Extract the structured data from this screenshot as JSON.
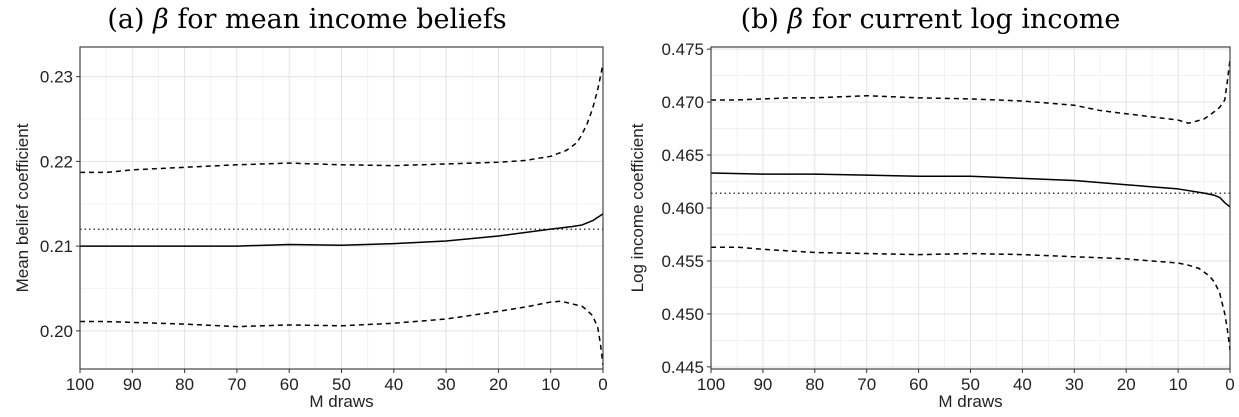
{
  "chart_data": [
    {
      "type": "line",
      "title_prefix": "(a)",
      "title_symbol": "β",
      "title_text": "for mean income beliefs",
      "xlabel": "M draws",
      "ylabel": "Mean belief coefficient",
      "xlim": [
        0,
        100
      ],
      "x_reversed": true,
      "ylim": [
        0.1955,
        0.2335
      ],
      "x_ticks": [
        100,
        90,
        80,
        70,
        60,
        50,
        40,
        30,
        20,
        10,
        0
      ],
      "y_ticks": [
        0.2,
        0.21,
        0.22,
        0.23
      ],
      "y_tick_labels": [
        "0.20",
        "0.21",
        "0.22",
        "0.23"
      ],
      "grid": true,
      "reference_line": 0.212,
      "series": [
        {
          "style": "solid",
          "x": [
            100,
            90,
            80,
            70,
            60,
            50,
            40,
            30,
            20,
            10,
            6,
            4,
            2,
            0
          ],
          "y": [
            0.21,
            0.21,
            0.21,
            0.21,
            0.2102,
            0.2101,
            0.2103,
            0.2106,
            0.2112,
            0.212,
            0.2123,
            0.2125,
            0.213,
            0.2138
          ]
        },
        {
          "style": "dashed",
          "x": [
            100,
            95,
            90,
            80,
            70,
            60,
            50,
            40,
            30,
            20,
            15,
            10,
            7,
            5,
            4,
            3,
            2,
            1,
            0
          ],
          "y": [
            0.2187,
            0.2187,
            0.219,
            0.2193,
            0.2196,
            0.2198,
            0.2196,
            0.2195,
            0.2197,
            0.2199,
            0.2201,
            0.2206,
            0.2213,
            0.2222,
            0.2232,
            0.2245,
            0.2262,
            0.2285,
            0.2315
          ]
        },
        {
          "style": "dashed",
          "x": [
            100,
            95,
            90,
            80,
            70,
            60,
            50,
            40,
            30,
            20,
            15,
            10,
            8,
            6,
            4,
            3,
            2,
            1,
            0.5,
            0
          ],
          "y": [
            0.2011,
            0.2011,
            0.201,
            0.2008,
            0.2005,
            0.2007,
            0.2006,
            0.2009,
            0.2014,
            0.2023,
            0.2028,
            0.2034,
            0.2035,
            0.2032,
            0.2029,
            0.2024,
            0.2018,
            0.2004,
            0.1985,
            0.196
          ]
        }
      ]
    },
    {
      "type": "line",
      "title_prefix": "(b)",
      "title_symbol": "β",
      "title_text": "for current log income",
      "xlabel": "M draws",
      "ylabel": "Log income coefficient",
      "xlim": [
        0,
        100
      ],
      "x_reversed": true,
      "ylim": [
        0.4448,
        0.4752
      ],
      "x_ticks": [
        100,
        90,
        80,
        70,
        60,
        50,
        40,
        30,
        20,
        10,
        0
      ],
      "y_ticks": [
        0.445,
        0.45,
        0.455,
        0.46,
        0.465,
        0.47,
        0.475
      ],
      "y_tick_labels": [
        "0.445",
        "0.450",
        "0.455",
        "0.460",
        "0.465",
        "0.470",
        "0.475"
      ],
      "grid": true,
      "reference_line": 0.4614,
      "series": [
        {
          "style": "solid",
          "x": [
            100,
            90,
            80,
            70,
            60,
            50,
            40,
            30,
            20,
            10,
            5,
            3,
            2,
            1,
            0
          ],
          "y": [
            0.4633,
            0.4632,
            0.4632,
            0.4631,
            0.463,
            0.463,
            0.4628,
            0.4626,
            0.4622,
            0.4618,
            0.4614,
            0.4612,
            0.461,
            0.4605,
            0.4601
          ]
        },
        {
          "style": "dashed",
          "x": [
            100,
            95,
            90,
            85,
            80,
            70,
            60,
            50,
            40,
            30,
            25,
            20,
            15,
            10,
            8,
            5,
            3,
            2,
            1,
            0.5,
            0
          ],
          "y": [
            0.4702,
            0.4702,
            0.4703,
            0.4704,
            0.4704,
            0.4706,
            0.4704,
            0.4703,
            0.4701,
            0.4697,
            0.4692,
            0.4689,
            0.4686,
            0.4683,
            0.468,
            0.4684,
            0.4691,
            0.4695,
            0.4702,
            0.472,
            0.474
          ]
        },
        {
          "style": "dashed",
          "x": [
            100,
            95,
            90,
            80,
            70,
            60,
            50,
            40,
            30,
            20,
            15,
            10,
            8,
            6,
            4,
            3,
            2,
            1,
            0.5,
            0
          ],
          "y": [
            0.4563,
            0.4563,
            0.4561,
            0.4558,
            0.4557,
            0.4556,
            0.4557,
            0.4556,
            0.4554,
            0.4552,
            0.455,
            0.4548,
            0.4546,
            0.4543,
            0.4536,
            0.453,
            0.452,
            0.45,
            0.4485,
            0.4466
          ]
        }
      ]
    }
  ]
}
